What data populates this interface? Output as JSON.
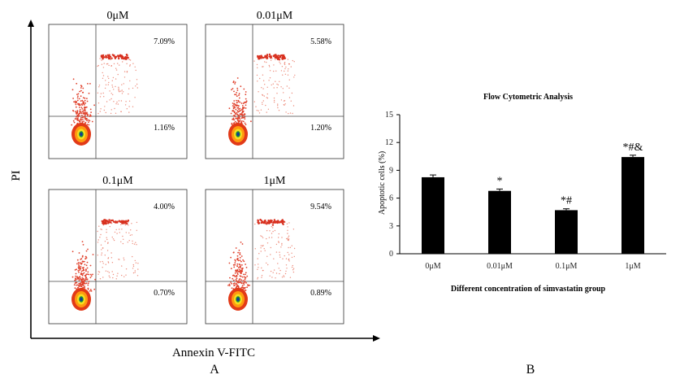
{
  "panel_a": {
    "label": "A",
    "y_axis_label": "PI",
    "x_axis_label": "Annexin V-FITC",
    "plots": [
      {
        "title": "0μM",
        "upper_right_pct": "7.09%",
        "lower_right_pct": "1.16%"
      },
      {
        "title": "0.01μM",
        "upper_right_pct": "5.58%",
        "lower_right_pct": "1.20%"
      },
      {
        "title": "0.1μM",
        "upper_right_pct": "4.00%",
        "lower_right_pct": "0.70%"
      },
      {
        "title": "1μM",
        "upper_right_pct": "9.54%",
        "lower_right_pct": "0.89%"
      }
    ]
  },
  "panel_b": {
    "label": "B"
  },
  "chart_data": {
    "type": "bar",
    "title": "Flow Cytometric Analysis",
    "xlabel": "Different concentration of simvastatin group",
    "ylabel": "Apoptotic cells (%)",
    "categories": [
      "0μM",
      "0.01μM",
      "0.1μM",
      "1μM"
    ],
    "values": [
      8.25,
      6.78,
      4.7,
      10.43
    ],
    "errors": [
      0.25,
      0.2,
      0.15,
      0.2
    ],
    "annotations": [
      "",
      "*",
      "*#",
      "*#&"
    ],
    "ylim": [
      0,
      15
    ],
    "yticks": [
      "0",
      "3",
      "6",
      "9",
      "12",
      "15"
    ],
    "bar_color": "#000000"
  }
}
